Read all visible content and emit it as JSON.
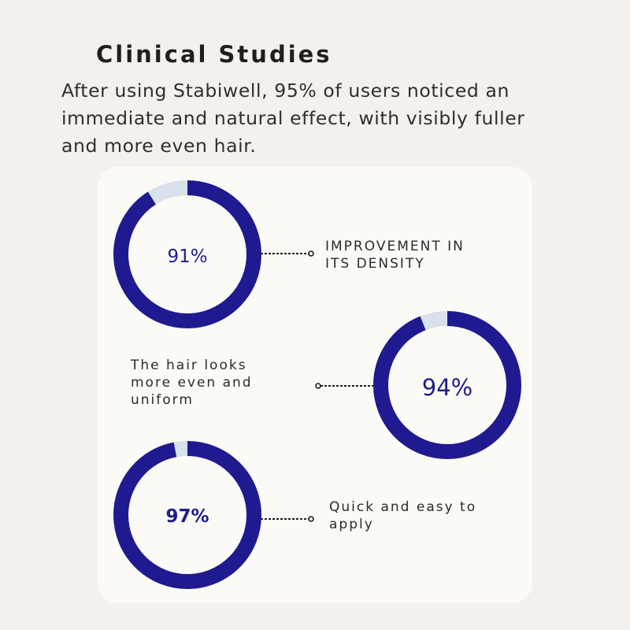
{
  "header": {
    "title": "Clinical Studies",
    "intro": "After using Stabiwell, 95% of users noticed an immediate and natural effect, with visibly fuller and more even hair."
  },
  "colors": {
    "ring": "#1f1a90",
    "track": "#d8e1ec",
    "text": "#1f1c8a"
  },
  "chart_data": [
    {
      "type": "pie",
      "value": 91,
      "label_text": "91%",
      "caption": "IMPROVEMENT IN ITS DENSITY"
    },
    {
      "type": "pie",
      "value": 94,
      "label_text": "94%",
      "caption": "The hair looks more even and uniform"
    },
    {
      "type": "pie",
      "value": 97,
      "label_text": "97%",
      "caption": "Quick and easy to apply"
    }
  ]
}
